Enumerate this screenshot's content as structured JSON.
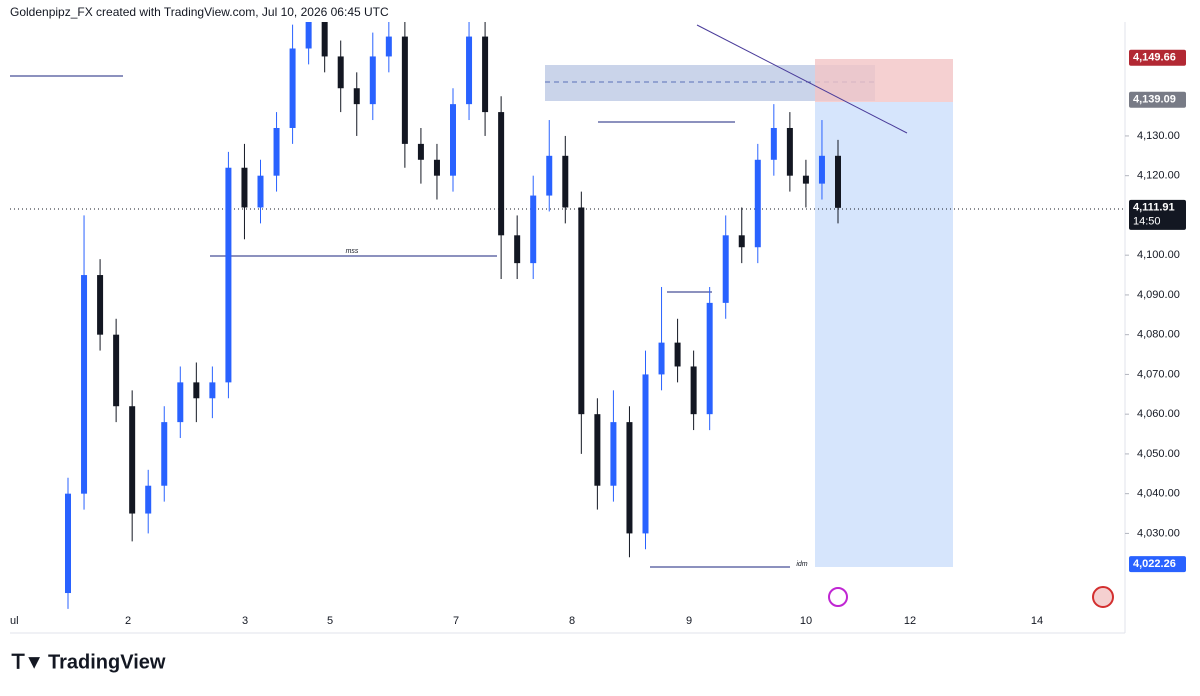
{
  "header": {
    "title": "Goldenpipz_FX created with TradingView.com, Jul 10, 2026 06:45 UTC"
  },
  "footer": {
    "brand": "TradingView"
  },
  "chart_data": {
    "type": "candlestick",
    "ylim": [
      4005.7,
      4164.2
    ],
    "yticks": [
      {
        "value": 4130,
        "label": "4,130.00"
      },
      {
        "value": 4120,
        "label": "4,120.00"
      },
      {
        "value": 4100,
        "label": "4,100.00"
      },
      {
        "value": 4090,
        "label": "4,090.00"
      },
      {
        "value": 4080,
        "label": "4,080.00"
      },
      {
        "value": 4070,
        "label": "4,070.00"
      },
      {
        "value": 4060,
        "label": "4,060.00"
      },
      {
        "value": 4050,
        "label": "4,050.00"
      },
      {
        "value": 4040,
        "label": "4,040.00"
      },
      {
        "value": 4030,
        "label": "4,030.00"
      }
    ],
    "x_labels": [
      "ul",
      "2",
      "3",
      "5",
      "7",
      "8",
      "9",
      "10",
      "12",
      "14"
    ],
    "up_color": "#2962ff",
    "down_color": "#131722",
    "open": [
      4015,
      4040,
      4095,
      4080,
      4062,
      4035,
      4042,
      4058,
      4068,
      4064,
      4068,
      4122,
      4112,
      4120,
      4132,
      4152,
      4160,
      4150,
      4142,
      4138,
      4150,
      4155,
      4128,
      4124,
      4120,
      4138,
      4155,
      4136,
      4105,
      4098,
      4115,
      4125,
      4112,
      4060,
      4042,
      4058,
      4030,
      4070,
      4078,
      4072,
      4060,
      4088,
      4105,
      4102,
      4124,
      4132,
      4120,
      4118,
      4125
    ],
    "high": [
      4044,
      4110,
      4099,
      4084,
      4066,
      4046,
      4062,
      4072,
      4073,
      4072,
      4126,
      4128,
      4124,
      4136,
      4158,
      4164,
      4164,
      4154,
      4146,
      4156,
      4162,
      4159,
      4132,
      4128,
      4142,
      4162,
      4159,
      4140,
      4110,
      4120,
      4134,
      4130,
      4116,
      4064,
      4066,
      4062,
      4076,
      4092,
      4084,
      4076,
      4092,
      4110,
      4112,
      4128,
      4138,
      4136,
      4124,
      4134,
      4129
    ],
    "low": [
      4011,
      4036,
      4076,
      4058,
      4028,
      4030,
      4038,
      4054,
      4058,
      4059,
      4064,
      4104,
      4108,
      4116,
      4128,
      4148,
      4146,
      4136,
      4130,
      4134,
      4146,
      4122,
      4118,
      4114,
      4116,
      4134,
      4130,
      4094,
      4094,
      4094,
      4111,
      4108,
      4050,
      4036,
      4038,
      4024,
      4026,
      4066,
      4068,
      4056,
      4056,
      4084,
      4098,
      4098,
      4120,
      4116,
      4112,
      4114,
      4108
    ],
    "close": [
      4040,
      4095,
      4080,
      4062,
      4035,
      4042,
      4058,
      4068,
      4064,
      4068,
      4122,
      4112,
      4120,
      4132,
      4152,
      4160,
      4150,
      4142,
      4138,
      4150,
      4155,
      4128,
      4124,
      4120,
      4138,
      4155,
      4136,
      4105,
      4098,
      4115,
      4125,
      4112,
      4060,
      4042,
      4058,
      4030,
      4070,
      4078,
      4072,
      4060,
      4088,
      4105,
      4102,
      4124,
      4132,
      4120,
      4118,
      4125,
      4111.91
    ],
    "price_labels": [
      {
        "value": 4149.66,
        "label": "4,149.66",
        "color": "#b22833"
      },
      {
        "value": 4139.09,
        "label": "4,139.09",
        "color": "#787b86"
      },
      {
        "value": 4111.91,
        "label": "4,111.91",
        "color": "#131722"
      },
      {
        "value": 4022.26,
        "label": "4,022.26",
        "color": "#2962ff"
      }
    ],
    "countdown": "14:50",
    "annotations": [
      "mss",
      "idm"
    ]
  }
}
